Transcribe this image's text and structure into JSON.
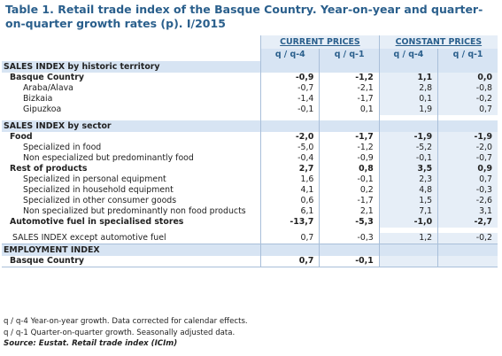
{
  "title": "Table 1. Retail trade index of the Basque Country. Year-on-year and quarter-on-quarter growth rates (p). I/2015",
  "header": {
    "current_prices": "CURRENT PRICES",
    "constant_prices": "CONSTANT PRICES",
    "q4": "q / q-4",
    "q1": "q / q-1"
  },
  "sections": [
    {
      "title": "SALES INDEX by historic territory",
      "rows": [
        {
          "label": "Basque Country",
          "level": 1,
          "v": [
            "-0,9",
            "-1,2",
            "1,1",
            "0,0"
          ]
        },
        {
          "label": "Araba/Álava",
          "level": 2,
          "v": [
            "-0,7",
            "-2,1",
            "2,8",
            "-0,8"
          ]
        },
        {
          "label": "Bizkaia",
          "level": 2,
          "v": [
            "-1,4",
            "-1,7",
            "0,1",
            "-0,2"
          ]
        },
        {
          "label": "Gipuzkoa",
          "level": 2,
          "v": [
            "-0,1",
            "0,1",
            "1,9",
            "0,7"
          ]
        }
      ]
    },
    {
      "title": "SALES INDEX by sector",
      "rows": [
        {
          "label": "Food",
          "level": 1,
          "v": [
            "-2,0",
            "-1,7",
            "-1,9",
            "-1,9"
          ]
        },
        {
          "label": "Specialized in food",
          "level": 2,
          "v": [
            "-5,0",
            "-1,2",
            "-5,2",
            "-2,0"
          ]
        },
        {
          "label": "Non especialized but predominantly food",
          "level": 2,
          "v": [
            "-0,4",
            "-0,9",
            "-0,1",
            "-0,7"
          ]
        },
        {
          "label": "Rest of products",
          "level": 1,
          "v": [
            "2,7",
            "0,8",
            "3,5",
            "0,9"
          ]
        },
        {
          "label": "Specialized in personal equipment",
          "level": 2,
          "v": [
            "1,6",
            "-0,1",
            "2,3",
            "0,7"
          ]
        },
        {
          "label": "Specialized in household equipment",
          "level": 2,
          "v": [
            "4,1",
            "0,2",
            "4,8",
            "-0,3"
          ]
        },
        {
          "label": "Specialized in other consumer goods",
          "level": 2,
          "v": [
            "0,6",
            "-1,7",
            "1,5",
            "-2,6"
          ]
        },
        {
          "label": "Non specialized but predominantly non food products",
          "level": 2,
          "v": [
            "6,1",
            "2,1",
            "7,1",
            "3,1"
          ]
        },
        {
          "label": "Automotive fuel in specialised stores",
          "level": 1,
          "v": [
            "-13,7",
            "-5,3",
            "-1,0",
            "-2,7"
          ]
        }
      ]
    }
  ],
  "except_row": {
    "label": "SALES INDEX except automotive fuel",
    "v": [
      "0,7",
      "-0,3",
      "1,2",
      "-0,2"
    ]
  },
  "employment": {
    "title": "EMPLOYMENT INDEX",
    "row": {
      "label": "Basque Country",
      "v": [
        "0,7",
        "-0,1",
        "",
        ""
      ]
    }
  },
  "notes": {
    "n1": "q / q-4 Year-on-year growth. Data corrected for calendar effects.",
    "n2": "q / q-1 Quarter-on-quarter growth. Seasonally adjusted data.",
    "source": "Source: Eustat. Retail trade index (ICIm)"
  }
}
